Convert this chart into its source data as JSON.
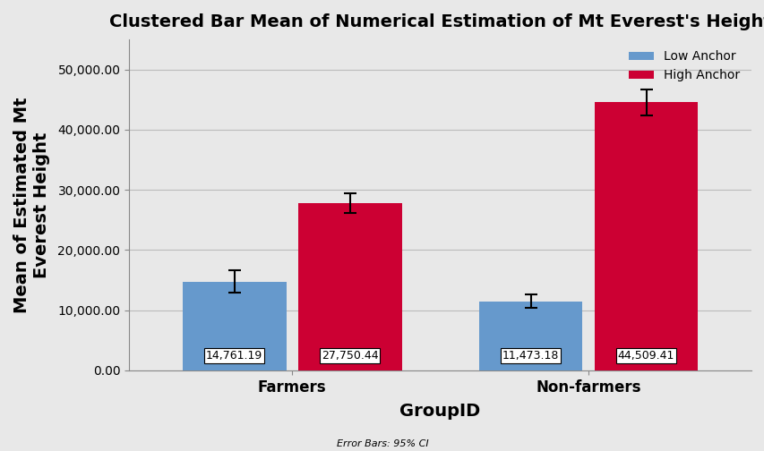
{
  "title": "Clustered Bar Mean of Numerical Estimation of Mt Everest's Height",
  "xlabel": "GroupID",
  "ylabel": "Mean of Estimated Mt\nEverest Height",
  "groups": [
    "Farmers",
    "Non-farmers"
  ],
  "conditions": [
    "Low Anchor",
    "High Anchor"
  ],
  "values": {
    "Farmers": [
      14761.19,
      27750.44
    ],
    "Non-farmers": [
      11473.18,
      44509.41
    ]
  },
  "errors": {
    "Farmers": [
      1800,
      1600
    ],
    "Non-farmers": [
      1100,
      2200
    ]
  },
  "bar_colors": [
    "#6699CC",
    "#CC0033"
  ],
  "ylim": [
    0,
    55000
  ],
  "yticks": [
    0,
    10000,
    20000,
    30000,
    40000,
    50000
  ],
  "ytick_labels": [
    "0.00",
    "10,000.00",
    "20,000.00",
    "30,000.00",
    "40,000.00",
    "50,000.00"
  ],
  "bar_width": 0.35,
  "annotation_fontsize": 9,
  "title_fontsize": 13,
  "axis_label_fontsize": 13,
  "tick_fontsize": 10,
  "legend_fontsize": 10,
  "error_note": "Error Bars: 95% CI",
  "background_color": "#E8E8E8",
  "plot_bg_color": "#E8E8E8",
  "grid_color": "#BBBBBB"
}
